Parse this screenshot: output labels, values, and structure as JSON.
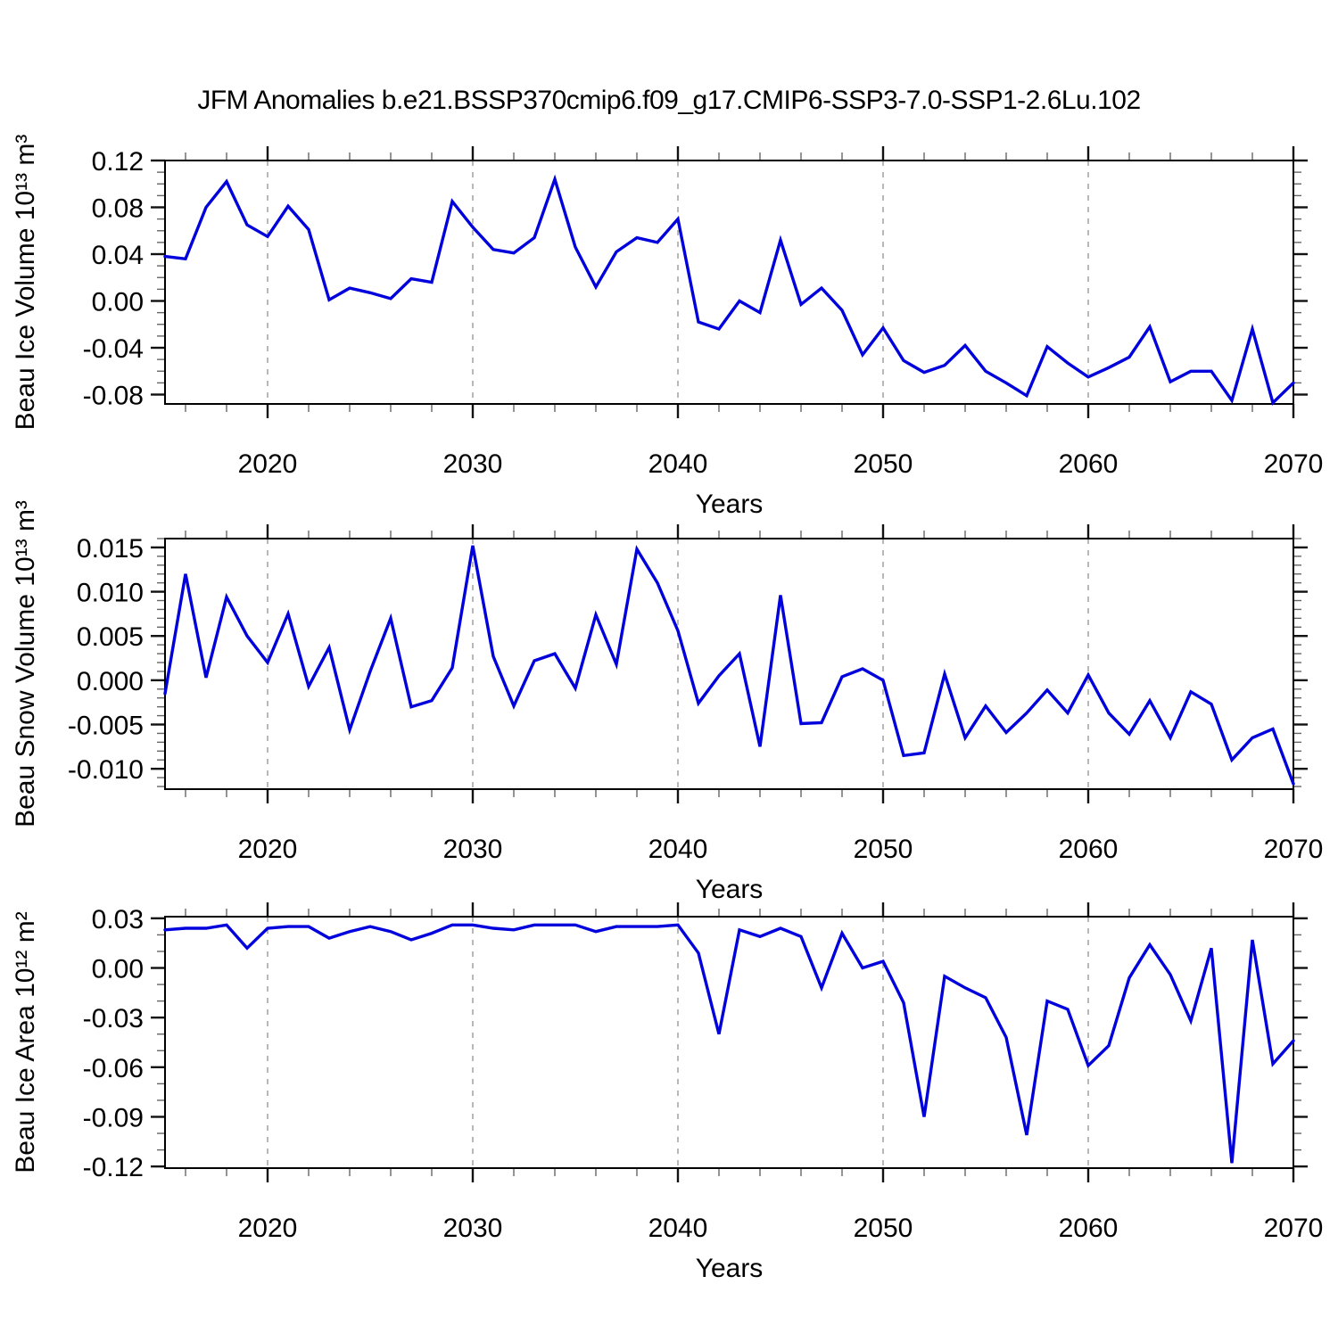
{
  "title": "JFM Anomalies b.e21.BSSP370cmip6.f09_g17.CMIP6-SSP3-7.0-SSP1-2.6Lu.102",
  "colors": {
    "line": "#0000dd",
    "grid": "#b0b0b0",
    "frame": "#000000",
    "major_tick": "#111111",
    "minor_tick": "#666666"
  },
  "x_axis": {
    "label": "Years",
    "start_year": 2015,
    "end_year": 2070,
    "major_ticks": [
      2020,
      2030,
      2040,
      2050,
      2060,
      2070
    ],
    "major_labels": [
      "2020",
      "2030",
      "2040",
      "2050",
      "2060",
      "2070"
    ],
    "minor_step": 2,
    "grid_years": [
      2020,
      2030,
      2040,
      2050,
      2060
    ]
  },
  "chart_data": [
    {
      "type": "line",
      "series_name": "Beau Ice Volume anomaly",
      "ylabel": "Beau Ice Volume 10¹³ m³",
      "xlabel": "Years",
      "ylim": [
        -0.088,
        0.12
      ],
      "y_major_values": [
        0.12,
        0.08,
        0.04,
        0.0,
        -0.04,
        -0.08
      ],
      "y_major_labels": [
        "0.12",
        "0.08",
        "0.04",
        "0.00",
        "-0.04",
        "-0.08"
      ],
      "y_minor_step": 0.01,
      "x_start_year": 2015,
      "values": [
        0.038,
        0.036,
        0.08,
        0.102,
        0.065,
        0.055,
        0.081,
        0.061,
        0.001,
        0.011,
        0.007,
        0.002,
        0.019,
        0.016,
        0.085,
        0.063,
        0.044,
        0.041,
        0.054,
        0.104,
        0.046,
        0.012,
        0.042,
        0.054,
        0.05,
        0.07,
        -0.018,
        -0.024,
        0.0,
        -0.01,
        0.052,
        -0.003,
        0.011,
        -0.008,
        -0.046,
        -0.023,
        -0.051,
        -0.061,
        -0.055,
        -0.038,
        -0.06,
        -0.07,
        -0.081,
        -0.039,
        -0.053,
        -0.065,
        -0.057,
        -0.048,
        -0.022,
        -0.069,
        -0.06,
        -0.06,
        -0.085,
        -0.024,
        -0.087,
        -0.07
      ]
    },
    {
      "type": "line",
      "series_name": "Beau Snow Volume anomaly",
      "ylabel": "Beau Snow Volume 10¹³ m³",
      "xlabel": "Years",
      "ylim": [
        -0.0123,
        0.016
      ],
      "y_major_values": [
        0.015,
        0.01,
        0.005,
        0.0,
        -0.005,
        -0.01
      ],
      "y_major_labels": [
        "0.015",
        "0.010",
        "0.005",
        "0.000",
        "-0.005",
        "-0.010"
      ],
      "y_minor_step": 0.001,
      "x_start_year": 2015,
      "values": [
        -0.0015,
        0.012,
        0.0003,
        0.0094,
        0.005,
        0.002,
        0.0075,
        -0.0007,
        0.0037,
        -0.0056,
        0.001,
        0.007,
        -0.003,
        -0.0023,
        0.0014,
        0.0152,
        0.0027,
        -0.0029,
        0.0022,
        0.003,
        -0.0009,
        0.0074,
        0.0018,
        0.0148,
        0.011,
        0.0056,
        -0.0026,
        0.0005,
        0.003,
        -0.0075,
        0.0096,
        -0.0049,
        -0.0048,
        0.0004,
        0.0013,
        0.0,
        -0.0085,
        -0.0082,
        0.0007,
        -0.0065,
        -0.0029,
        -0.0059,
        -0.0037,
        -0.0011,
        -0.0037,
        0.0006,
        -0.0037,
        -0.0061,
        -0.0023,
        -0.0065,
        -0.0013,
        -0.0027,
        -0.009,
        -0.0065,
        -0.0055,
        -0.0117
      ]
    },
    {
      "type": "line",
      "series_name": "Beau Ice Area anomaly",
      "ylabel": "Beau Ice Area 10¹² m²",
      "xlabel": "Years",
      "ylim": [
        -0.121,
        0.031
      ],
      "y_major_values": [
        0.03,
        0.0,
        -0.03,
        -0.06,
        -0.09,
        -0.12
      ],
      "y_major_labels": [
        "0.03",
        "0.00",
        "-0.03",
        "-0.06",
        "-0.09",
        "-0.12"
      ],
      "y_minor_step": 0.01,
      "x_start_year": 2015,
      "values": [
        0.023,
        0.024,
        0.024,
        0.026,
        0.012,
        0.024,
        0.025,
        0.025,
        0.018,
        0.022,
        0.025,
        0.022,
        0.017,
        0.021,
        0.026,
        0.026,
        0.024,
        0.023,
        0.026,
        0.026,
        0.026,
        0.022,
        0.025,
        0.025,
        0.025,
        0.026,
        0.009,
        -0.04,
        0.023,
        0.019,
        0.024,
        0.019,
        -0.012,
        0.021,
        0.0,
        0.004,
        -0.021,
        -0.09,
        -0.005,
        -0.012,
        -0.018,
        -0.042,
        -0.101,
        -0.02,
        -0.025,
        -0.059,
        -0.047,
        -0.006,
        0.014,
        -0.004,
        -0.032,
        0.012,
        -0.118,
        0.017,
        -0.058,
        -0.044
      ]
    }
  ]
}
